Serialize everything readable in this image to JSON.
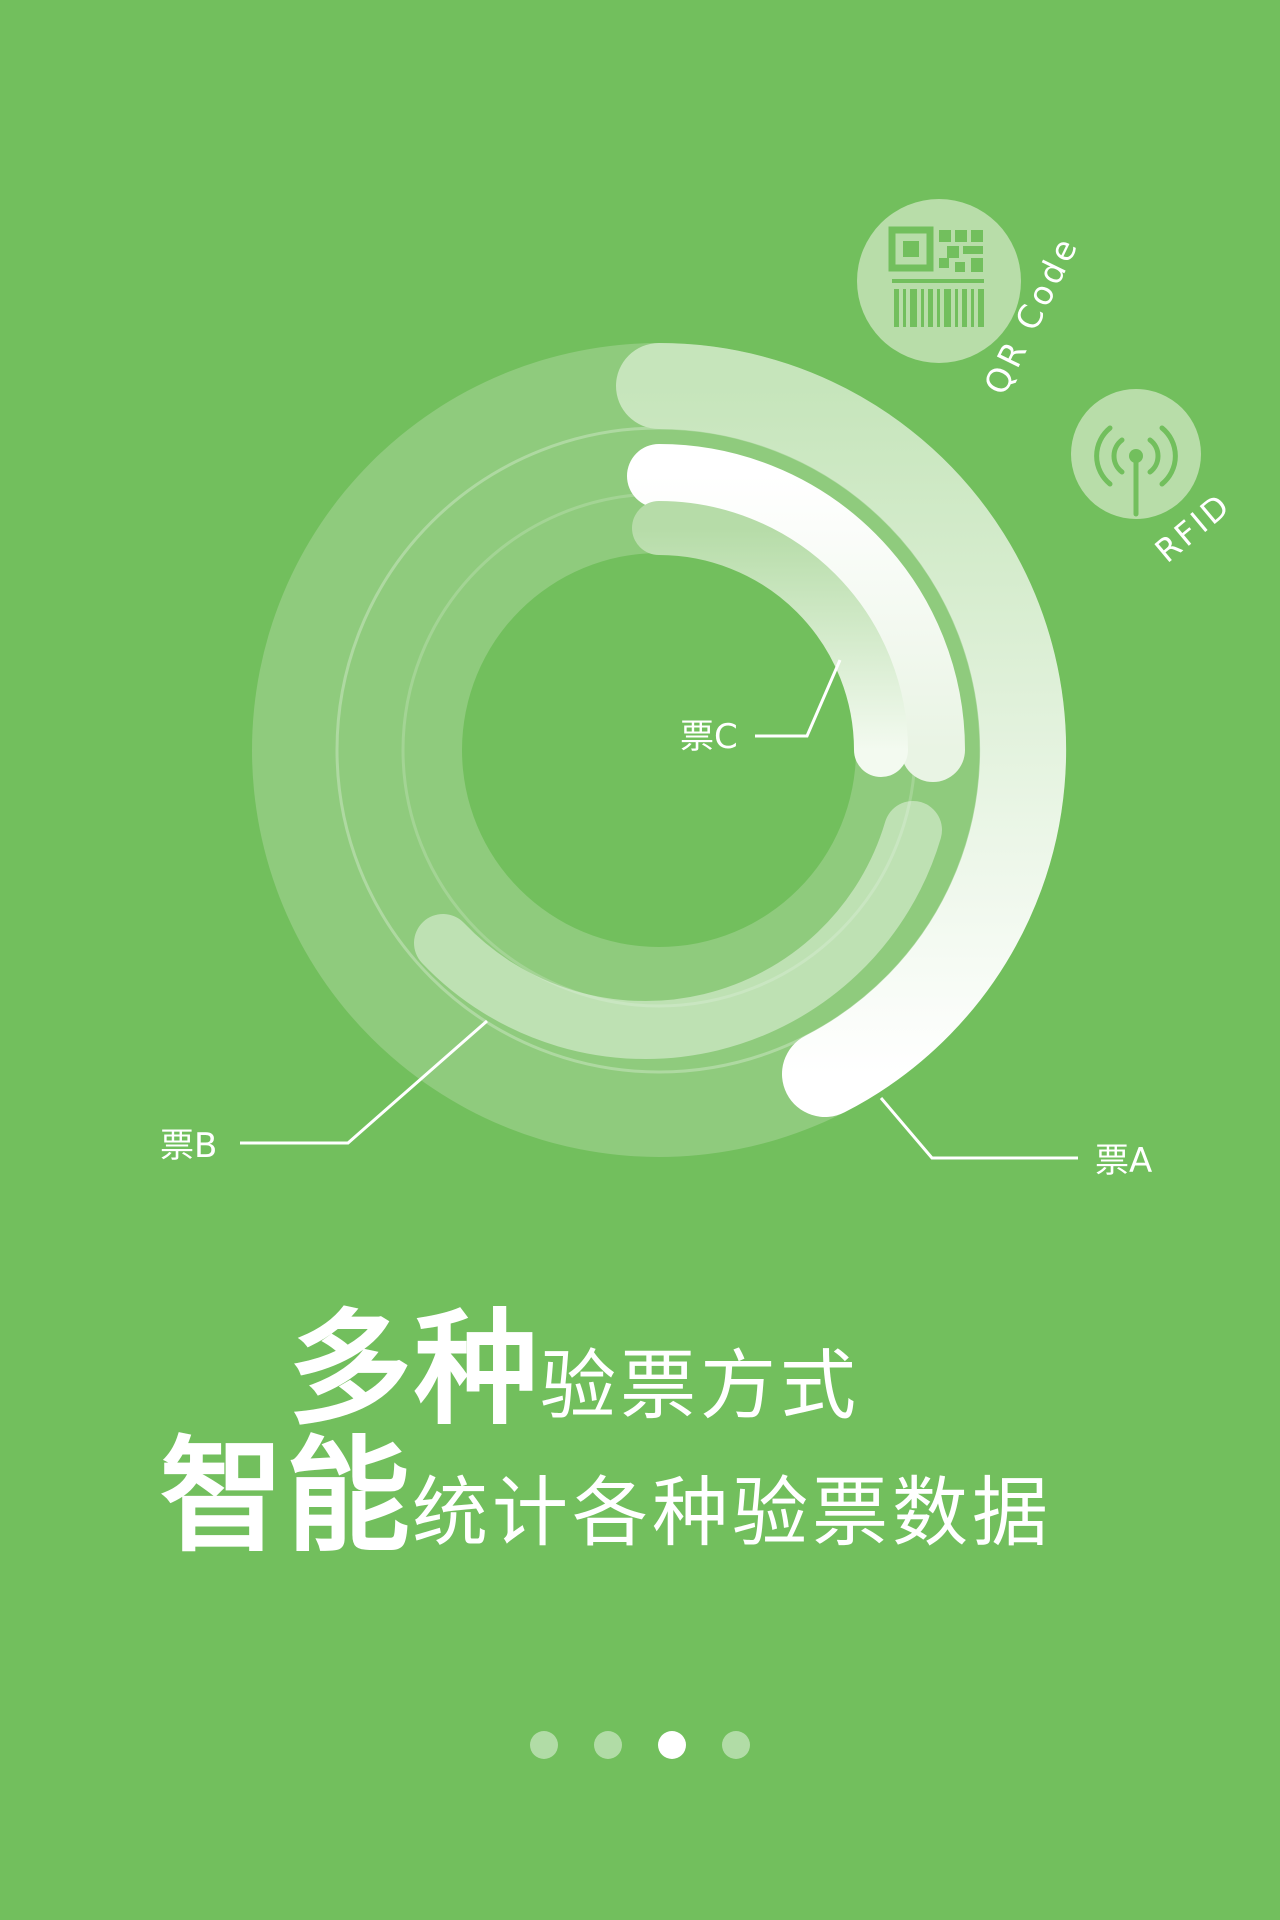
{
  "tickets": {
    "a_label": "票A",
    "b_label": "票B",
    "c_label": "票C"
  },
  "methods": {
    "qr_label": "QR Code",
    "qr_icon": "qr-code-icon",
    "rfid_label": "RFID",
    "rfid_icon": "rfid-antenna-icon"
  },
  "headline": {
    "line1_bold": "多种",
    "line1_light": "验票方式",
    "line2_bold": "智能",
    "line2_light": "统计各种验票数据"
  },
  "pager": {
    "total": 4,
    "active_index": 2
  },
  "colors": {
    "background": "#72bf5d",
    "accent": "#ffffff"
  }
}
